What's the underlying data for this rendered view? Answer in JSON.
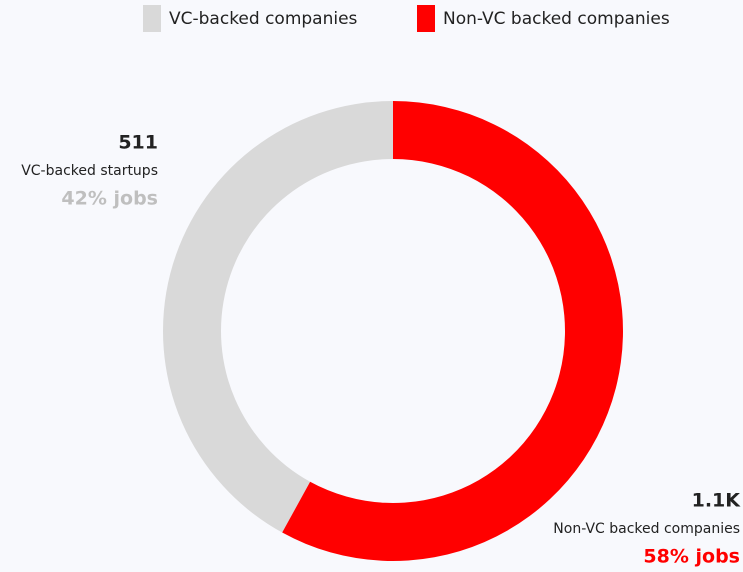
{
  "chart_data": {
    "type": "donut",
    "categories": [
      "VC-backed companies",
      "Non-VC backed companies"
    ],
    "colors": [
      "#d9d9d9",
      "#ff0000"
    ],
    "values": [
      42,
      58
    ],
    "value_labels": [
      "42% jobs",
      "58% jobs"
    ],
    "counts": [
      511,
      1100
    ],
    "count_labels": [
      "511",
      "1.1K"
    ],
    "segment_labels": [
      "VC-backed startups",
      "Non-VC backed companies"
    ],
    "legend": "top"
  }
}
